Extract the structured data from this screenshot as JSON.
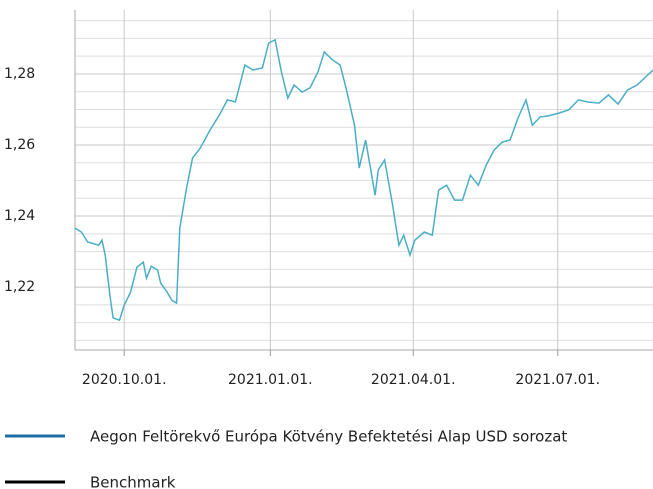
{
  "chart_data": {
    "type": "line",
    "x": [
      "2020-08-31",
      "2020-09-04",
      "2020-09-08",
      "2020-09-15",
      "2020-09-17",
      "2020-09-19",
      "2020-09-22",
      "2020-09-24",
      "2020-09-28",
      "2020-10-01",
      "2020-10-05",
      "2020-10-09",
      "2020-10-13",
      "2020-10-15",
      "2020-10-18",
      "2020-10-22",
      "2020-10-24",
      "2020-10-28",
      "2020-10-31",
      "2020-11-03",
      "2020-11-05",
      "2020-11-09",
      "2020-11-13",
      "2020-11-18",
      "2020-11-24",
      "2020-11-30",
      "2020-12-05",
      "2020-12-10",
      "2020-12-16",
      "2020-12-21",
      "2020-12-27",
      "2020-12-31",
      "2021-01-04",
      "2021-01-08",
      "2021-01-12",
      "2021-01-16",
      "2021-01-21",
      "2021-01-26",
      "2021-01-31",
      "2021-02-04",
      "2021-02-09",
      "2021-02-14",
      "2021-02-18",
      "2021-02-23",
      "2021-02-26",
      "2021-03-02",
      "2021-03-08",
      "2021-03-10",
      "2021-03-14",
      "2021-03-19",
      "2021-03-23",
      "2021-03-26",
      "2021-03-30",
      "2021-04-02",
      "2021-04-08",
      "2021-04-13",
      "2021-04-17",
      "2021-04-22",
      "2021-04-27",
      "2021-05-02",
      "2021-05-07",
      "2021-05-12",
      "2021-05-17",
      "2021-05-22",
      "2021-05-27",
      "2021-06-01",
      "2021-06-06",
      "2021-06-11",
      "2021-06-15",
      "2021-06-20",
      "2021-06-25",
      "2021-07-02",
      "2021-07-08",
      "2021-07-14",
      "2021-07-20",
      "2021-07-27",
      "2021-08-02",
      "2021-08-08",
      "2021-08-14",
      "2021-08-20",
      "2021-08-30"
    ],
    "series": [
      {
        "name": "Aegon Feltörekvő Európa Kötvény Befektetési Alap USD sorozat",
        "color": "#4aaec6",
        "legend_color": "#1a6ea5",
        "values": [
          1.2366,
          1.2355,
          1.2327,
          1.2318,
          1.2332,
          1.229,
          1.2177,
          1.2113,
          1.2107,
          1.2149,
          1.2186,
          1.2256,
          1.227,
          1.2225,
          1.2259,
          1.2248,
          1.2211,
          1.2186,
          1.2163,
          1.2155,
          1.2366,
          1.2473,
          1.2563,
          1.2592,
          1.2642,
          1.2685,
          1.2727,
          1.2721,
          1.2825,
          1.2811,
          1.2817,
          1.2887,
          1.2896,
          1.2806,
          1.2732,
          1.2769,
          1.2749,
          1.2761,
          1.2806,
          1.2862,
          1.284,
          1.2825,
          1.2755,
          1.2656,
          1.2535,
          1.2614,
          1.2459,
          1.253,
          1.2558,
          1.2431,
          1.2318,
          1.2346,
          1.229,
          1.2332,
          1.2355,
          1.2346,
          1.2473,
          1.2487,
          1.2445,
          1.2445,
          1.2515,
          1.2487,
          1.2544,
          1.2586,
          1.2608,
          1.2614,
          1.2676,
          1.2727,
          1.2656,
          1.2679,
          1.2682,
          1.269,
          1.2699,
          1.2727,
          1.2721,
          1.2718,
          1.2741,
          1.2715,
          1.2755,
          1.2769,
          1.2811
        ]
      },
      {
        "name": "Benchmark",
        "color": "#000000",
        "legend_color": "#000000",
        "values": [
          null,
          null,
          null,
          null,
          null,
          null,
          null,
          null,
          null,
          null,
          null,
          null,
          null,
          null,
          null,
          null,
          null,
          null,
          null,
          null,
          null,
          null,
          null,
          null,
          null,
          null,
          null,
          null,
          null,
          null,
          null,
          null,
          null,
          null,
          null,
          null,
          null,
          null,
          null,
          null,
          null,
          null,
          null,
          null,
          null,
          null,
          null,
          null,
          null,
          null,
          null,
          null,
          null,
          null,
          null,
          null,
          null,
          null,
          null,
          null,
          null,
          null,
          null,
          null,
          null,
          null,
          null,
          null,
          null,
          null,
          null,
          null,
          null,
          null,
          null,
          null,
          null,
          null,
          null,
          null,
          null
        ]
      }
    ],
    "xlim": [
      "2020-08-31",
      "2021-08-30"
    ],
    "xticks": [
      {
        "value": "2020-10-01",
        "label": "2020.10.01."
      },
      {
        "value": "2021-01-01",
        "label": "2021.01.01."
      },
      {
        "value": "2021-04-01",
        "label": "2021.04.01."
      },
      {
        "value": "2021-07-01",
        "label": "2021.07.01."
      }
    ],
    "ylim": [
      1.2023,
      1.298
    ],
    "yticks": [
      {
        "value": 1.22,
        "label": "1,22"
      },
      {
        "value": 1.24,
        "label": "1,24"
      },
      {
        "value": 1.26,
        "label": "1,26"
      },
      {
        "value": 1.28,
        "label": "1,28"
      }
    ],
    "grid": true
  }
}
